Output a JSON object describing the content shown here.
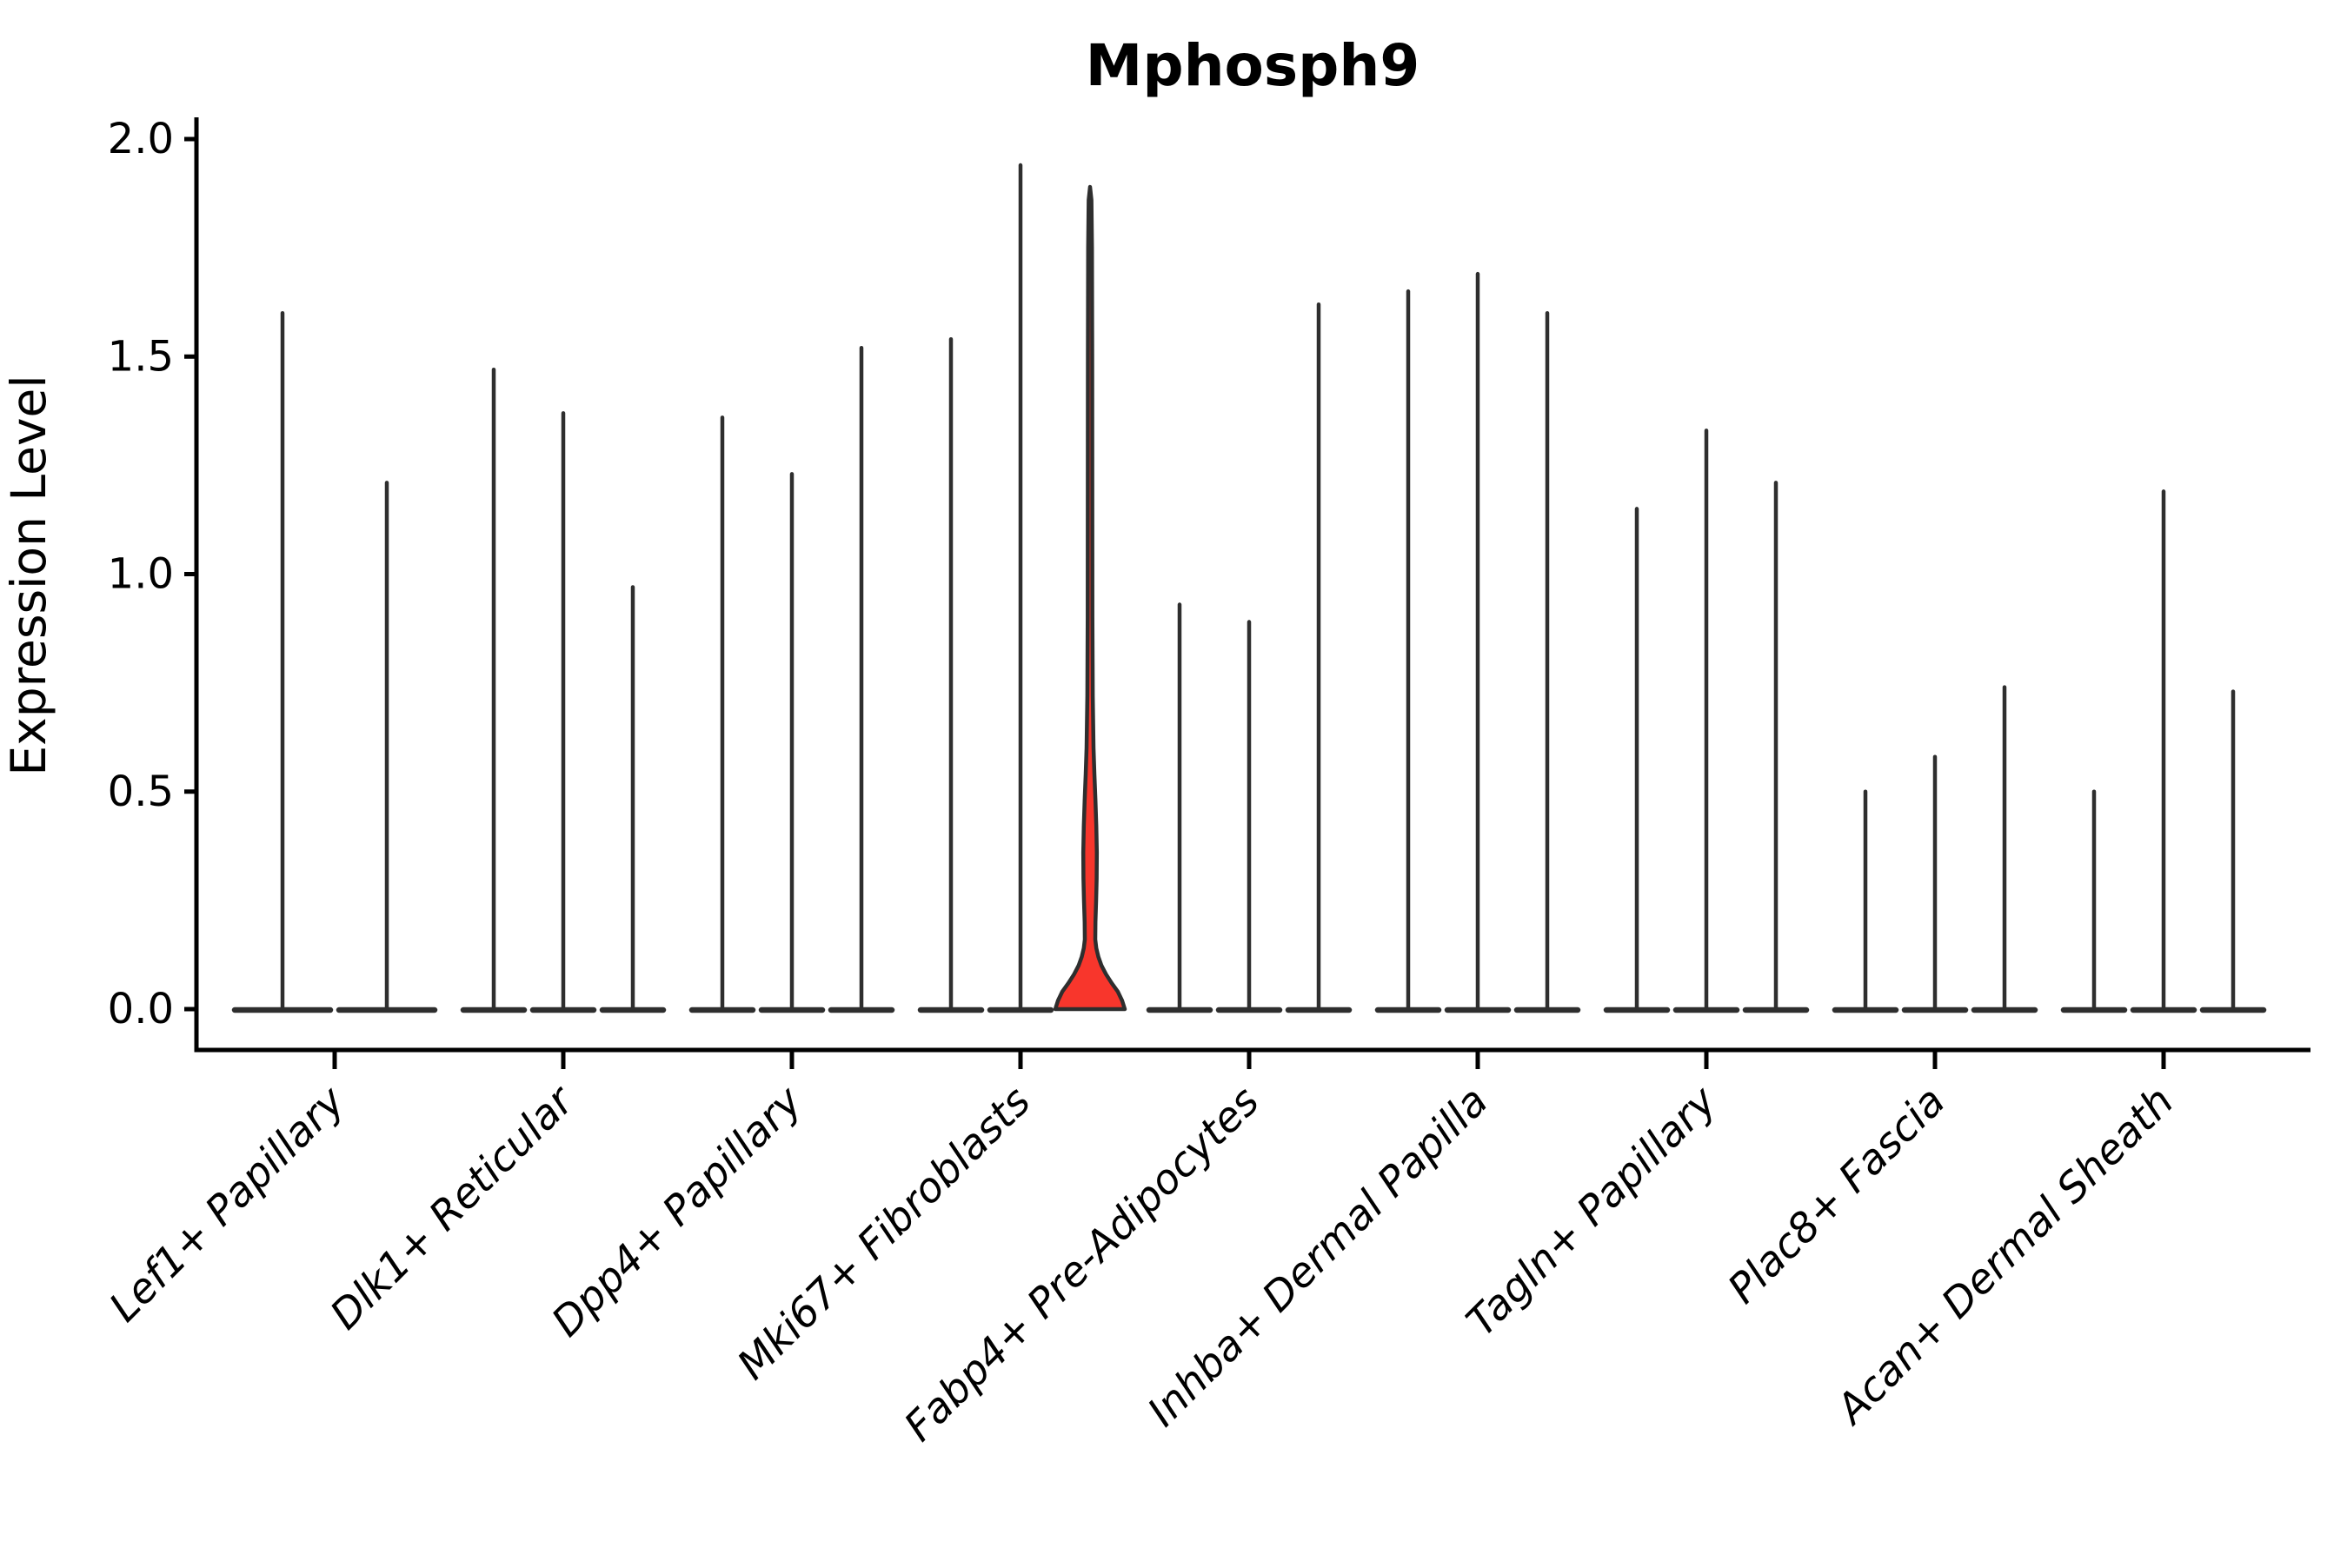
{
  "chart_data": {
    "type": "violin",
    "title": "Mphosph9",
    "ylabel": "Expression Level",
    "xlabel": "",
    "ylim": [
      0,
      2
    ],
    "yticks": [
      0.0,
      0.5,
      1.0,
      1.5,
      2.0
    ],
    "ytick_labels": [
      "0.0",
      "0.5",
      "1.0",
      "1.5",
      "2.0"
    ],
    "grid": "off",
    "legend": "none",
    "categories": [
      "Lef1+ Papillary",
      "Dlk1+ Reticular",
      "Dpp4+ Papillary",
      "Mki67+ Fibroblasts",
      "Fabp4+ Pre-Adipocytes",
      "Inhba+ Dermal Papilla",
      "Tagln+ Papillary",
      "Plac8+ Fascia",
      "Acan+ Dermal Sheath"
    ],
    "groups": [
      {
        "category": "Lef1+ Papillary",
        "violins": [
          {
            "max": 1.6
          },
          {
            "max": 1.21
          }
        ]
      },
      {
        "category": "Dlk1+ Reticular",
        "violins": [
          {
            "max": 1.47
          },
          {
            "max": 1.37
          },
          {
            "max": 0.97
          }
        ]
      },
      {
        "category": "Dpp4+ Papillary",
        "violins": [
          {
            "max": 1.36
          },
          {
            "max": 1.23
          },
          {
            "max": 1.52
          }
        ]
      },
      {
        "category": "Mki67+ Fibroblasts",
        "violins": [
          {
            "max": 1.54
          },
          {
            "max": 1.94
          },
          {
            "max": 1.89,
            "highlighted": true,
            "profile": [
              [
                0,
                1.0
              ],
              [
                0.02,
                0.92
              ],
              [
                0.04,
                0.8
              ],
              [
                0.06,
                0.62
              ],
              [
                0.08,
                0.46
              ],
              [
                0.1,
                0.33
              ],
              [
                0.12,
                0.24
              ],
              [
                0.14,
                0.18
              ],
              [
                0.16,
                0.15
              ],
              [
                0.2,
                0.155
              ],
              [
                0.25,
                0.175
              ],
              [
                0.3,
                0.19
              ],
              [
                0.36,
                0.195
              ],
              [
                0.42,
                0.18
              ],
              [
                0.48,
                0.155
              ],
              [
                0.54,
                0.125
              ],
              [
                0.6,
                0.1
              ],
              [
                0.72,
                0.078
              ],
              [
                0.9,
                0.068
              ],
              [
                1.2,
                0.065
              ],
              [
                1.5,
                0.062
              ],
              [
                1.75,
                0.055
              ],
              [
                1.86,
                0.04
              ],
              [
                1.89,
                0
              ]
            ]
          }
        ]
      },
      {
        "category": "Fabp4+ Pre-Adipocytes",
        "violins": [
          {
            "max": 0.93
          },
          {
            "max": 0.89
          },
          {
            "max": 1.62
          }
        ]
      },
      {
        "category": "Inhba+ Dermal Papilla",
        "violins": [
          {
            "max": 1.65
          },
          {
            "max": 1.69
          },
          {
            "max": 1.6
          }
        ]
      },
      {
        "category": "Tagln+ Papillary",
        "violins": [
          {
            "max": 1.15
          },
          {
            "max": 1.33
          },
          {
            "max": 1.21
          }
        ]
      },
      {
        "category": "Plac8+ Fascia",
        "violins": [
          {
            "max": 0.5
          },
          {
            "max": 0.58
          },
          {
            "max": 0.74
          }
        ]
      },
      {
        "category": "Acan+ Dermal Sheath",
        "violins": [
          {
            "max": 0.5
          },
          {
            "max": 1.19
          },
          {
            "max": 0.73
          }
        ]
      }
    ],
    "highlight": {
      "category": "Mki67+ Fibroblasts",
      "violin_index": 2,
      "fill_color": "#f8362c",
      "bulge_center_value": 0.36,
      "bulge_value_span": [
        0.16,
        0.6
      ]
    },
    "colors": {
      "spike": "#2e2e2e",
      "axis": "#000000",
      "highlight_fill": "#f8362c",
      "background": "#ffffff"
    }
  }
}
